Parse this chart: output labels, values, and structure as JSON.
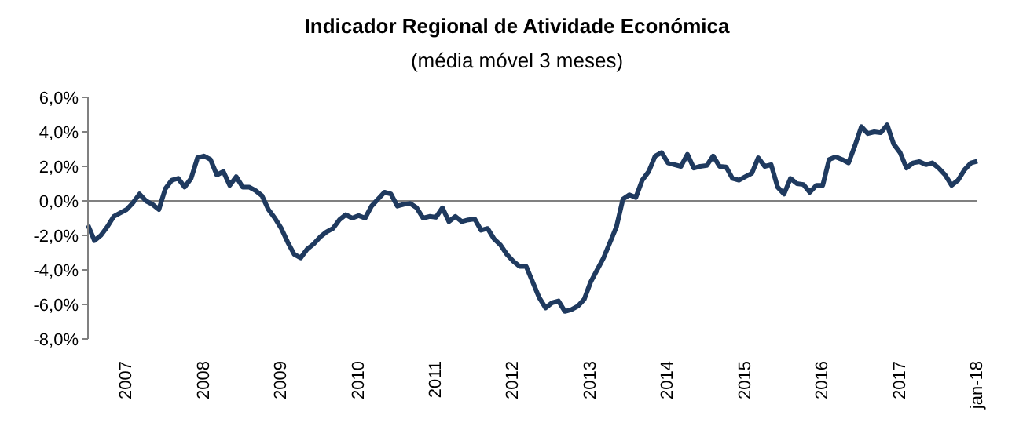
{
  "chart_data": {
    "type": "line",
    "title": "Indicador Regional de Atividade Económica",
    "subtitle": "(média móvel 3 meses)",
    "categories": [
      null,
      null,
      null,
      null,
      null,
      null,
      "2007",
      null,
      null,
      null,
      null,
      null,
      null,
      null,
      null,
      null,
      null,
      null,
      "2008",
      null,
      null,
      null,
      null,
      null,
      null,
      null,
      null,
      null,
      null,
      null,
      "2009",
      null,
      null,
      null,
      null,
      null,
      null,
      null,
      null,
      null,
      null,
      null,
      "2010",
      null,
      null,
      null,
      null,
      null,
      null,
      null,
      null,
      null,
      null,
      null,
      "2011",
      null,
      null,
      null,
      null,
      null,
      null,
      null,
      null,
      null,
      null,
      null,
      "2012",
      null,
      null,
      null,
      null,
      null,
      null,
      null,
      null,
      null,
      null,
      null,
      "2013",
      null,
      null,
      null,
      null,
      null,
      null,
      null,
      null,
      null,
      null,
      null,
      "2014",
      null,
      null,
      null,
      null,
      null,
      null,
      null,
      null,
      null,
      null,
      null,
      "2015",
      null,
      null,
      null,
      null,
      null,
      null,
      null,
      null,
      null,
      null,
      null,
      "2016",
      null,
      null,
      null,
      null,
      null,
      null,
      null,
      null,
      null,
      null,
      null,
      "2017",
      null,
      null,
      null,
      null,
      null,
      null,
      null,
      null,
      null,
      null,
      null,
      "jan-18"
    ],
    "series": [
      {
        "color": "#1f3a5f",
        "values": [
          -1.4,
          -2.3,
          -2.0,
          -1.5,
          -0.9,
          -0.7,
          -0.5,
          -0.1,
          0.4,
          0.0,
          -0.2,
          -0.5,
          0.7,
          1.2,
          1.3,
          0.8,
          1.3,
          2.5,
          2.6,
          2.4,
          1.5,
          1.7,
          0.9,
          1.4,
          0.8,
          0.8,
          0.6,
          0.3,
          -0.5,
          -1.0,
          -1.6,
          -2.4,
          -3.1,
          -3.3,
          -2.8,
          -2.5,
          -2.1,
          -1.8,
          -1.6,
          -1.1,
          -0.8,
          -1.0,
          -0.85,
          -1.0,
          -0.3,
          0.1,
          0.5,
          0.4,
          -0.3,
          -0.2,
          -0.15,
          -0.4,
          -1.0,
          -0.9,
          -0.95,
          -0.4,
          -1.2,
          -0.9,
          -1.2,
          -1.1,
          -1.05,
          -1.7,
          -1.6,
          -2.2,
          -2.55,
          -3.1,
          -3.5,
          -3.8,
          -3.8,
          -4.7,
          -5.6,
          -6.2,
          -5.9,
          -5.8,
          -6.4,
          -6.3,
          -6.1,
          -5.7,
          -4.7,
          -4.0,
          -3.3,
          -2.4,
          -1.5,
          0.1,
          0.35,
          0.2,
          1.2,
          1.7,
          2.6,
          2.8,
          2.2,
          2.1,
          2.0,
          2.7,
          1.9,
          2.0,
          2.05,
          2.6,
          2.0,
          1.97,
          1.3,
          1.2,
          1.4,
          1.6,
          2.5,
          2.0,
          2.1,
          0.8,
          0.4,
          1.3,
          1.0,
          0.95,
          0.5,
          0.9,
          0.9,
          2.4,
          2.55,
          2.4,
          2.2,
          3.2,
          4.3,
          3.9,
          4.0,
          3.95,
          4.4,
          3.3,
          2.8,
          1.9,
          2.2,
          2.27,
          2.1,
          2.2,
          1.9,
          1.5,
          0.9,
          1.2,
          1.8,
          2.2,
          2.3
        ]
      }
    ],
    "ylim": [
      -8,
      6
    ],
    "yticks": [
      {
        "value": -8,
        "label": "-8,0%"
      },
      {
        "value": -6,
        "label": "-6,0%"
      },
      {
        "value": -4,
        "label": "-4,0%"
      },
      {
        "value": -2,
        "label": "-2,0%"
      },
      {
        "value": 0,
        "label": "0,0%"
      },
      {
        "value": 2,
        "label": "2,0%"
      },
      {
        "value": 4,
        "label": "4,0%"
      },
      {
        "value": 6,
        "label": "6,0%"
      }
    ],
    "ref_lines": [
      {
        "axis": "y",
        "value": 0,
        "color": "#808080"
      }
    ],
    "grid": false,
    "legend": false,
    "marker": "none",
    "line_style": "solid"
  }
}
